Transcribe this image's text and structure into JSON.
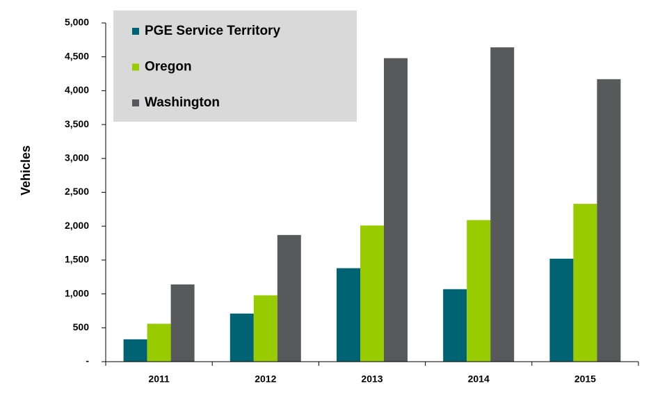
{
  "chart_data": {
    "type": "bar",
    "y_label": "Vehicles",
    "categories": [
      "2011",
      "2012",
      "2013",
      "2014",
      "2015"
    ],
    "series": [
      {
        "name": "PGE Service Territory",
        "color": "#006373",
        "values": [
          330,
          710,
          1380,
          1070,
          1520
        ]
      },
      {
        "name": "Oregon",
        "color": "#99cc00",
        "values": [
          560,
          980,
          2010,
          2090,
          2330
        ]
      },
      {
        "name": "Washington",
        "color": "#58595b",
        "values": [
          1140,
          1870,
          4480,
          4640,
          4170
        ]
      }
    ],
    "ylim": [
      0,
      5000
    ],
    "yticks": [
      {
        "value": 0,
        "label": "-"
      },
      {
        "value": 500,
        "label": "500"
      },
      {
        "value": 1000,
        "label": "1,000"
      },
      {
        "value": 1500,
        "label": "1,500"
      },
      {
        "value": 2000,
        "label": "2,000"
      },
      {
        "value": 2500,
        "label": "2,500"
      },
      {
        "value": 3000,
        "label": "3,000"
      },
      {
        "value": 3500,
        "label": "3,500"
      },
      {
        "value": 4000,
        "label": "4,000"
      },
      {
        "value": 4500,
        "label": "4,500"
      },
      {
        "value": 5000,
        "label": "5,000"
      }
    ],
    "legend": "upper left",
    "grid": false
  }
}
